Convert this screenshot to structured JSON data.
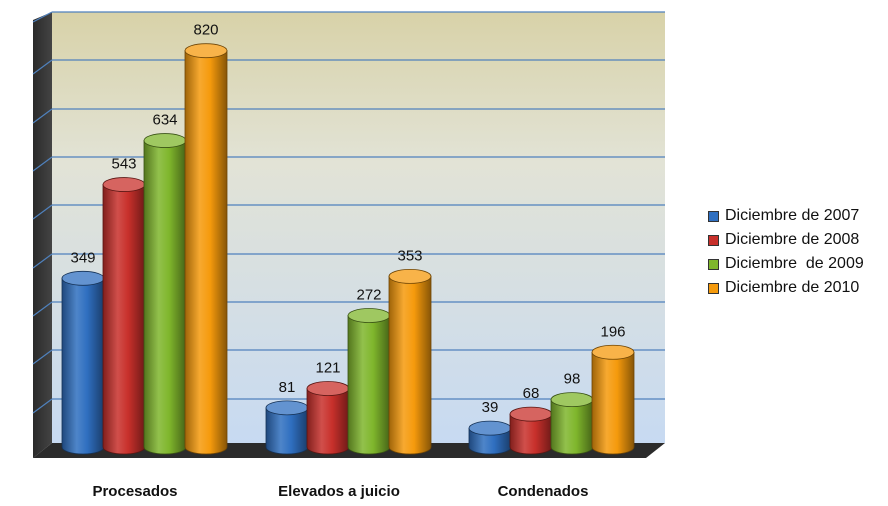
{
  "chart_data": {
    "type": "bar",
    "categories": [
      "Procesados",
      "Elevados a juicio",
      "Condenados"
    ],
    "series": [
      {
        "name": "Diciembre de 2007",
        "values": [
          349,
          81,
          39
        ],
        "color": "#2f6fc0"
      },
      {
        "name": "Diciembre de 2008",
        "values": [
          543,
          121,
          68
        ],
        "color": "#c8302b"
      },
      {
        "name": "Diciembre  de 2009",
        "values": [
          634,
          272,
          98
        ],
        "color": "#7fb62c"
      },
      {
        "name": "Diciembre de 2010",
        "values": [
          820,
          353,
          196
        ],
        "color": "#f59a0c"
      }
    ],
    "ylim": [
      0,
      900
    ],
    "grid": true,
    "legend": "right",
    "data_labels": true,
    "bar_shape": "cylinder-3d"
  }
}
